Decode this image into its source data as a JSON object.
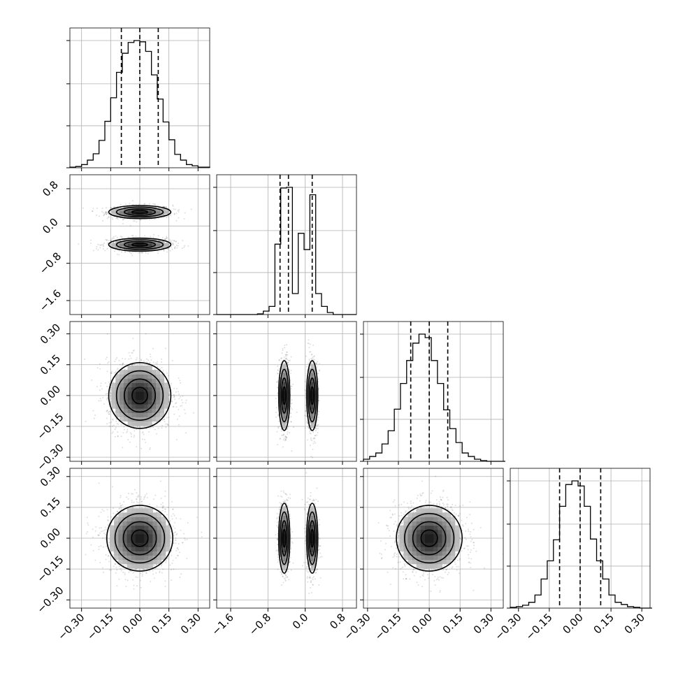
{
  "chart_data": {
    "type": "corner",
    "parameters": 4,
    "grid": true,
    "axes": [
      {
        "range": [
          -0.36,
          0.36
        ],
        "ticks": [
          -0.3,
          -0.15,
          0.0,
          0.15,
          0.3
        ],
        "tick_labels": [
          "−0.30",
          "−0.15",
          "0.00",
          "0.15",
          "0.30"
        ]
      },
      {
        "range": [
          -1.9,
          1.1
        ],
        "ticks": [
          -1.6,
          -0.8,
          0.0,
          0.8
        ],
        "tick_labels": [
          "−1.6",
          "−0.8",
          "0.0",
          "0.8"
        ]
      },
      {
        "range": [
          -0.32,
          0.36
        ],
        "ticks": [
          -0.3,
          -0.15,
          0.0,
          0.15,
          0.3
        ],
        "tick_labels": [
          "−0.30",
          "−0.15",
          "0.00",
          "0.15",
          "0.30"
        ]
      },
      {
        "range": [
          -0.34,
          0.34
        ],
        "ticks": [
          -0.3,
          -0.15,
          0.0,
          0.15,
          0.3
        ],
        "tick_labels": [
          "−0.30",
          "−0.15",
          "0.00",
          "0.15",
          "0.30"
        ]
      }
    ],
    "histograms": [
      {
        "bin_edges": [
          -0.36,
          -0.33,
          -0.3,
          -0.27,
          -0.24,
          -0.21,
          -0.18,
          -0.15,
          -0.12,
          -0.09,
          -0.06,
          -0.03,
          0.0,
          0.03,
          0.06,
          0.09,
          0.12,
          0.15,
          0.18,
          0.21,
          0.24,
          0.27,
          0.3,
          0.33,
          0.36
        ],
        "counts": [
          1,
          2,
          5,
          12,
          22,
          43,
          73,
          110,
          150,
          180,
          197,
          200,
          198,
          183,
          146,
          108,
          72,
          44,
          21,
          12,
          5,
          3,
          1,
          1
        ],
        "quantiles": [
          -0.095,
          0.0,
          0.095
        ]
      },
      {
        "bin_edges": [
          -1.9,
          -1.775,
          -1.65,
          -1.525,
          -1.4,
          -1.275,
          -1.15,
          -1.025,
          -0.9,
          -0.775,
          -0.65,
          -0.525,
          -0.4,
          -0.275,
          -0.15,
          -0.025,
          0.1,
          0.225,
          0.35,
          0.475,
          0.6,
          0.725,
          0.85,
          0.975,
          1.1
        ],
        "counts": [
          0,
          0,
          0,
          0,
          0,
          0,
          0,
          1,
          5,
          12,
          104,
          187,
          188,
          31,
          120,
          96,
          177,
          31,
          12,
          3,
          0,
          0,
          0,
          0
        ],
        "quantiles": [
          -0.54,
          -0.36,
          0.15
        ]
      },
      {
        "bin_edges": [
          -0.32,
          -0.29,
          -0.26,
          -0.23,
          -0.2,
          -0.17,
          -0.14,
          -0.11,
          -0.08,
          -0.05,
          -0.02,
          0.01,
          0.04,
          0.07,
          0.1,
          0.13,
          0.16,
          0.19,
          0.22,
          0.25,
          0.28,
          0.31,
          0.34,
          0.37
        ],
        "counts": [
          3,
          7,
          12,
          25,
          44,
          75,
          112,
          145,
          170,
          183,
          178,
          145,
          112,
          74,
          47,
          27,
          12,
          7,
          3,
          1,
          0,
          0,
          0
        ],
        "quantiles": [
          -0.09,
          0.0,
          0.09
        ]
      },
      {
        "bin_edges": [
          -0.34,
          -0.31,
          -0.28,
          -0.25,
          -0.22,
          -0.19,
          -0.16,
          -0.13,
          -0.1,
          -0.07,
          -0.04,
          -0.01,
          0.02,
          0.05,
          0.08,
          0.11,
          0.14,
          0.17,
          0.2,
          0.23,
          0.26,
          0.29,
          0.32,
          0.35
        ],
        "counts": [
          1,
          2,
          4,
          8,
          18,
          40,
          65,
          94,
          140,
          170,
          175,
          168,
          140,
          95,
          65,
          40,
          18,
          8,
          5,
          2,
          1,
          0,
          0
        ],
        "quantiles": [
          -0.1,
          0.0,
          0.1
        ]
      }
    ],
    "pairs": [
      {
        "x": 0,
        "y": 1,
        "modes": [
          {
            "mx": 0.0,
            "my": 0.3,
            "sx": 0.08,
            "sy": 0.07
          },
          {
            "mx": 0.0,
            "my": -0.4,
            "sx": 0.08,
            "sy": 0.07
          }
        ]
      },
      {
        "x": 0,
        "y": 2,
        "modes": [
          {
            "mx": 0.0,
            "my": 0.0,
            "sx": 0.08,
            "sy": 0.08
          }
        ]
      },
      {
        "x": 1,
        "y": 2,
        "modes": [
          {
            "mx": -0.45,
            "my": 0.0,
            "sx": 0.06,
            "sy": 0.085
          },
          {
            "mx": 0.15,
            "my": 0.0,
            "sx": 0.06,
            "sy": 0.085
          }
        ]
      },
      {
        "x": 0,
        "y": 3,
        "modes": [
          {
            "mx": 0.0,
            "my": 0.0,
            "sx": 0.085,
            "sy": 0.08
          }
        ]
      },
      {
        "x": 1,
        "y": 3,
        "modes": [
          {
            "mx": -0.45,
            "my": 0.0,
            "sx": 0.06,
            "sy": 0.085
          },
          {
            "mx": 0.15,
            "my": 0.0,
            "sx": 0.06,
            "sy": 0.085
          }
        ]
      },
      {
        "x": 2,
        "y": 3,
        "modes": [
          {
            "mx": 0.0,
            "my": 0.0,
            "sx": 0.08,
            "sy": 0.08
          }
        ]
      }
    ]
  }
}
